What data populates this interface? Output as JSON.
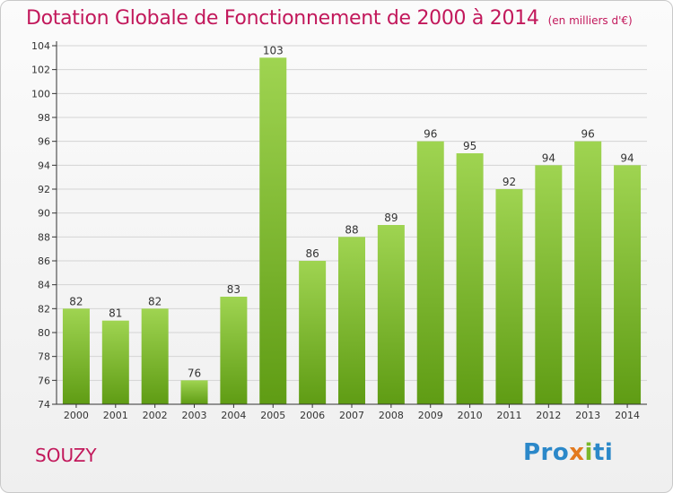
{
  "header": {
    "title": "Dotation Globale de Fonctionnement de 2000 à 2014",
    "subtitle": "(en milliers d'€)"
  },
  "footer": {
    "commune": "SOUZY",
    "logo_parts": [
      "Pro",
      "x",
      "i",
      "ti"
    ]
  },
  "colors": {
    "bar_top": "#9fd451",
    "bar_bottom": "#5f9c14",
    "title": "#c2185b",
    "axis": "#333333"
  },
  "chart_data": {
    "type": "bar",
    "title": "Dotation Globale de Fonctionnement de 2000 à 2014",
    "subtitle": "(en milliers d'€)",
    "categories": [
      "2000",
      "2001",
      "2002",
      "2003",
      "2004",
      "2005",
      "2006",
      "2007",
      "2008",
      "2009",
      "2010",
      "2011",
      "2012",
      "2013",
      "2014"
    ],
    "values": [
      82,
      81,
      82,
      76,
      83,
      103,
      86,
      88,
      89,
      96,
      95,
      92,
      94,
      96,
      94
    ],
    "ylim": [
      74,
      104
    ],
    "yticks": [
      74,
      76,
      78,
      80,
      82,
      84,
      86,
      88,
      90,
      92,
      94,
      96,
      98,
      100,
      102,
      104
    ],
    "grid": true,
    "legend": "none"
  }
}
